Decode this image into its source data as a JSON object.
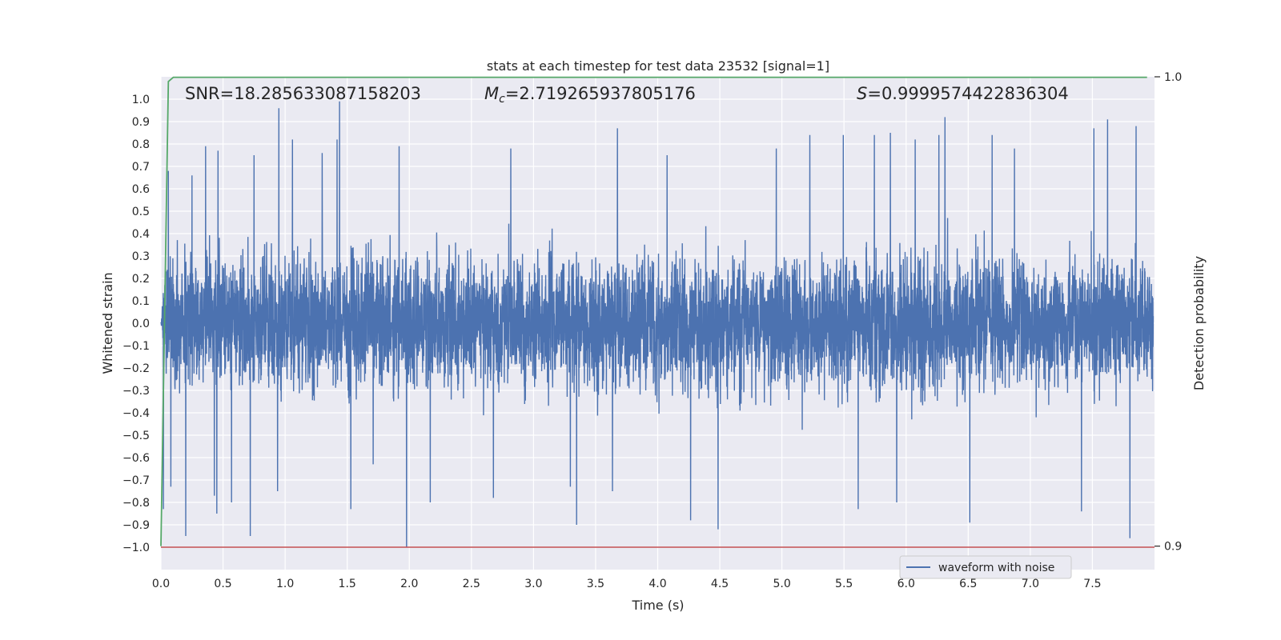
{
  "chart_data": {
    "type": "line",
    "title": "stats at each timestep for test data 23532 [signal=1]",
    "xlabel": "Time (s)",
    "ylabel": "Whitened strain",
    "y2label": "Detection probability",
    "xlim": [
      0,
      8.0
    ],
    "ylim": [
      -1.1,
      1.1
    ],
    "y2lim": [
      0.895,
      1.0
    ],
    "xticks": [
      "0.0",
      "0.5",
      "1.0",
      "1.5",
      "2.0",
      "2.5",
      "3.0",
      "3.5",
      "4.0",
      "4.5",
      "5.0",
      "5.5",
      "6.0",
      "6.5",
      "7.0",
      "7.5"
    ],
    "yticks": [
      "1.0",
      "0.9",
      "0.8",
      "0.7",
      "0.6",
      "0.5",
      "0.4",
      "0.3",
      "0.2",
      "0.1",
      "0.0",
      "−0.1",
      "−0.2",
      "−0.3",
      "−0.4",
      "−0.5",
      "−0.6",
      "−0.7",
      "−0.8",
      "−0.9",
      "−1.0"
    ],
    "y2ticks": [
      "1.0",
      "0.9"
    ],
    "grid": true,
    "legend_placement": "lower right",
    "annotations": {
      "snr": "SNR=18.285633087158203",
      "mc_symbol": "M",
      "mc_sub": "c",
      "mc_value": "=2.719265937805176",
      "s_symbol": "S",
      "s_value": "=0.9999574422836304"
    },
    "series": [
      {
        "name": "waveform with noise",
        "color": "#4c72b0",
        "description_of_values": "noise-dominated whitened strain, approx ±0.45 envelope with spikes to ±0.97",
        "spikes": [
          {
            "x": 0.02,
            "y": -0.83
          },
          {
            "x": 0.06,
            "y": 0.68
          },
          {
            "x": 0.08,
            "y": -0.73
          },
          {
            "x": 0.2,
            "y": -0.95
          },
          {
            "x": 0.25,
            "y": 0.66
          },
          {
            "x": 0.36,
            "y": 0.79
          },
          {
            "x": 0.43,
            "y": -0.77
          },
          {
            "x": 0.46,
            "y": 0.77
          },
          {
            "x": 0.45,
            "y": -0.85
          },
          {
            "x": 0.57,
            "y": -0.8
          },
          {
            "x": 0.72,
            "y": -0.95
          },
          {
            "x": 0.75,
            "y": 0.75
          },
          {
            "x": 0.95,
            "y": 0.96
          },
          {
            "x": 0.94,
            "y": -0.75
          },
          {
            "x": 1.06,
            "y": 0.82
          },
          {
            "x": 1.3,
            "y": 0.76
          },
          {
            "x": 1.42,
            "y": 0.82
          },
          {
            "x": 1.44,
            "y": 0.99
          },
          {
            "x": 1.53,
            "y": -0.83
          },
          {
            "x": 1.71,
            "y": -0.63
          },
          {
            "x": 1.92,
            "y": 0.79
          },
          {
            "x": 1.98,
            "y": -1.0
          },
          {
            "x": 2.17,
            "y": -0.8
          },
          {
            "x": 2.82,
            "y": 0.78
          },
          {
            "x": 2.68,
            "y": -0.78
          },
          {
            "x": 3.3,
            "y": -0.73
          },
          {
            "x": 3.35,
            "y": -0.9
          },
          {
            "x": 3.64,
            "y": -0.75
          },
          {
            "x": 3.68,
            "y": 0.87
          },
          {
            "x": 4.08,
            "y": 0.75
          },
          {
            "x": 4.27,
            "y": -0.88
          },
          {
            "x": 4.49,
            "y": -0.92
          },
          {
            "x": 4.96,
            "y": 0.78
          },
          {
            "x": 5.23,
            "y": 0.84
          },
          {
            "x": 5.5,
            "y": 0.84
          },
          {
            "x": 5.62,
            "y": -0.83
          },
          {
            "x": 5.75,
            "y": 0.84
          },
          {
            "x": 5.88,
            "y": 0.85
          },
          {
            "x": 5.93,
            "y": -0.8
          },
          {
            "x": 6.08,
            "y": 0.82
          },
          {
            "x": 6.27,
            "y": 0.84
          },
          {
            "x": 6.32,
            "y": 0.92
          },
          {
            "x": 6.52,
            "y": -0.89
          },
          {
            "x": 6.7,
            "y": 0.84
          },
          {
            "x": 6.88,
            "y": 0.78
          },
          {
            "x": 7.42,
            "y": -0.84
          },
          {
            "x": 7.52,
            "y": 0.87
          },
          {
            "x": 7.63,
            "y": 0.91
          },
          {
            "x": 7.81,
            "y": -0.96
          },
          {
            "x": 7.86,
            "y": 0.88
          }
        ]
      },
      {
        "name": "",
        "axis": "right",
        "color": "#55a868",
        "points": [
          {
            "x": 0.0,
            "y": 0.9
          },
          {
            "x": 0.06,
            "y": 0.999
          },
          {
            "x": 0.1,
            "y": 0.9999
          },
          {
            "x": 7.94,
            "y": 0.9999
          }
        ]
      },
      {
        "name": "",
        "axis": "left",
        "color": "#c44e52",
        "points": [
          {
            "x": 0.0,
            "y": -1.0
          },
          {
            "x": 8.0,
            "y": -1.0
          }
        ]
      }
    ]
  }
}
